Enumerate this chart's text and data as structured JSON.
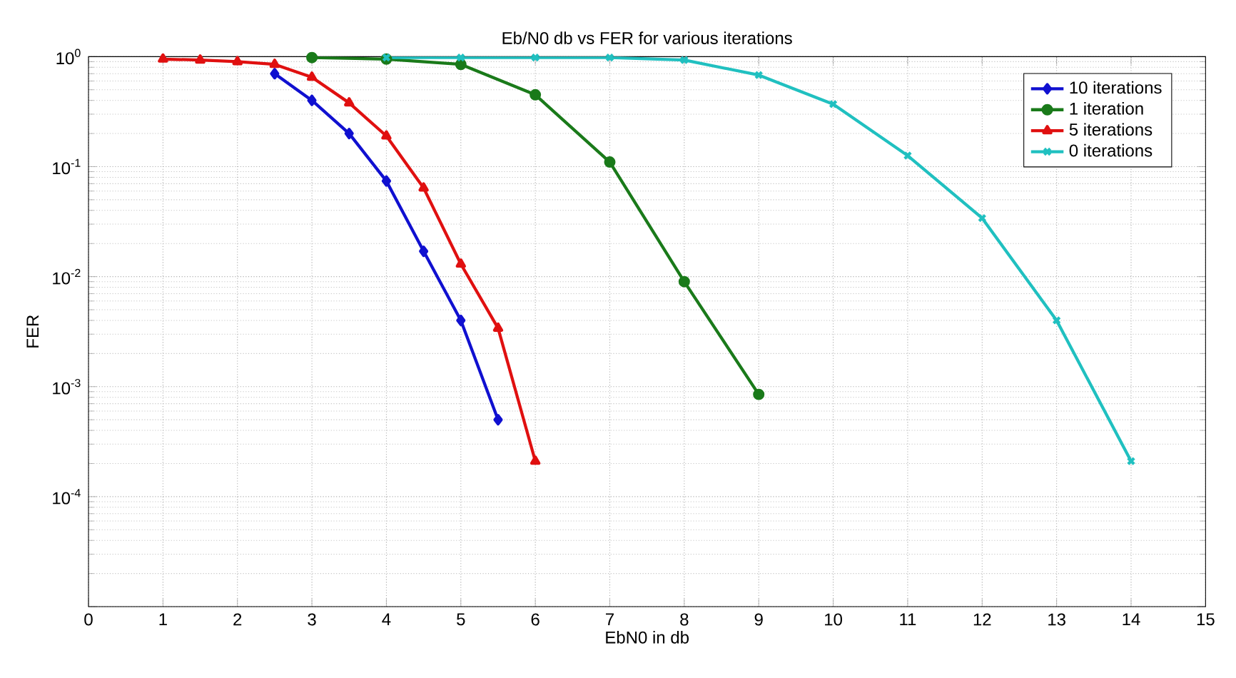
{
  "chart_data": {
    "type": "line",
    "title": "Eb/N0 db vs FER for various iterations",
    "xlabel": "EbN0 in db",
    "ylabel": "FER",
    "log": "y",
    "grid": true,
    "legend": "top right",
    "line_style": "solid",
    "xlim": [
      0,
      15
    ],
    "xticks": [
      0,
      1,
      2,
      3,
      4,
      5,
      6,
      7,
      8,
      9,
      10,
      11,
      12,
      13,
      14,
      15
    ],
    "ylim": [
      1e-05,
      1
    ],
    "yticks": [
      {
        "value": 1e-05,
        "label": null
      },
      {
        "value": 0.0001,
        "label": "10$^{-4}$"
      },
      {
        "value": 0.001,
        "label": "10$^{-3}$"
      },
      {
        "value": 0.01,
        "label": "10$^{-2}$"
      },
      {
        "value": 0.1,
        "label": "10$^{-1}$"
      },
      {
        "value": 1,
        "label": "10$^{0}$"
      }
    ],
    "series": [
      {
        "name": "10 iterations",
        "color": "#1010d0",
        "marker": "diamond",
        "x": [
          2.5,
          3,
          3.5,
          4,
          4.5,
          5,
          5.5
        ],
        "values": [
          0.7,
          0.4,
          0.2,
          0.074,
          0.017,
          0.004,
          0.0005
        ]
      },
      {
        "name": "1 iteration",
        "color": "#1a7a1a",
        "marker": "circle",
        "x": [
          3,
          4,
          5,
          6,
          7,
          8,
          9
        ],
        "values": [
          0.98,
          0.95,
          0.85,
          0.45,
          0.11,
          0.009,
          0.00085
        ]
      },
      {
        "name": "5 iterations",
        "color": "#e01010",
        "marker": "triangle",
        "x": [
          1,
          1.5,
          2,
          2.5,
          3,
          3.5,
          4,
          4.5,
          5,
          5.5,
          6
        ],
        "values": [
          0.95,
          0.93,
          0.9,
          0.85,
          0.65,
          0.38,
          0.19,
          0.064,
          0.013,
          0.0034,
          0.00021
        ]
      },
      {
        "name": "0 iterations",
        "color": "#20c0c0",
        "marker": "cross",
        "x": [
          4,
          5,
          6,
          7,
          8,
          9,
          10,
          11,
          12,
          13,
          14
        ],
        "values": [
          0.98,
          0.98,
          0.98,
          0.98,
          0.93,
          0.68,
          0.37,
          0.126,
          0.034,
          0.004,
          0.00021
        ]
      }
    ]
  }
}
